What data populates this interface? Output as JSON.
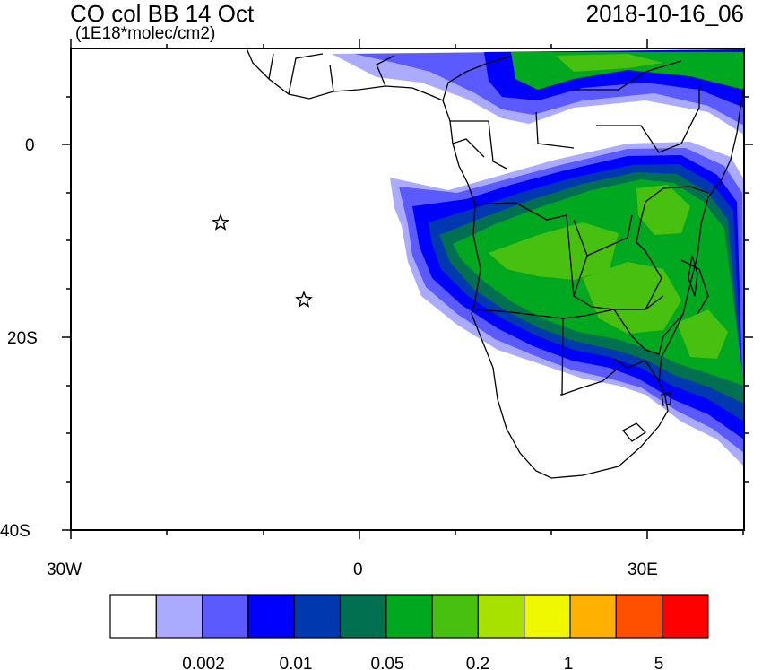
{
  "header": {
    "title": "CO col BB 14 Oct",
    "units": "(1E18*molec/cm2)",
    "timestamp": "2018-10-16_06"
  },
  "axes": {
    "lat_labels": [
      "0",
      "20S",
      "40S"
    ],
    "lon_labels": [
      "30W",
      "0",
      "30E"
    ]
  },
  "colorbar": {
    "colors": [
      "#ffffff",
      "#aaaaff",
      "#5a5aff",
      "#0000ff",
      "#0038b0",
      "#007050",
      "#00a820",
      "#48c010",
      "#a8e000",
      "#f0f800",
      "#ffb000",
      "#ff5000",
      "#ff0000"
    ],
    "labels": [
      "0.002",
      "0.01",
      "0.05",
      "0.2",
      "1",
      "5"
    ]
  },
  "markers": [
    {
      "name": "star-marker-ascension",
      "lon": -14.4,
      "lat": -7.9
    },
    {
      "name": "star-marker-st-helena",
      "lon": -5.7,
      "lat": -15.9
    }
  ],
  "map": {
    "lon_range": [
      -30,
      40
    ],
    "lat_range": [
      -40,
      10
    ]
  }
}
